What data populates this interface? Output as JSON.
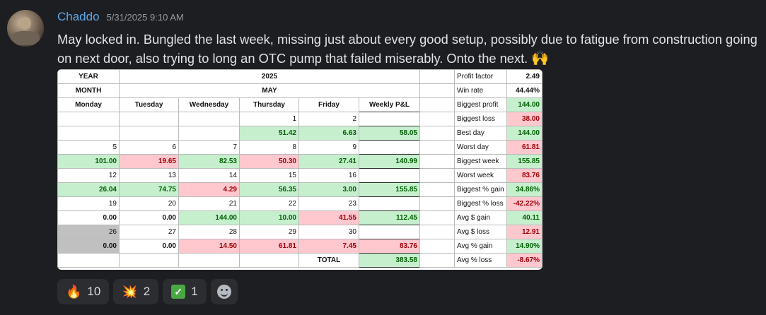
{
  "message": {
    "username": "Chaddo",
    "timestamp": "5/31/2025 9:10 AM",
    "text": "May locked in. Bungled the last week, missing just about every good setup, possibly due to fatigue from construction going on next door, also trying to long an OTC pump that failed miserably. Onto the next.",
    "emoji": "🙌"
  },
  "sheet": {
    "year_label": "YEAR",
    "year": "2025",
    "month_label": "MONTH",
    "month": "MAY",
    "days": [
      "Monday",
      "Tuesday",
      "Wednesday",
      "Thursday",
      "Friday",
      "Weekly P&L"
    ],
    "rows": [
      [
        "",
        "",
        "",
        "1",
        "2",
        ""
      ],
      [
        "",
        "",
        "",
        "51.42",
        "6.63",
        "58.05"
      ],
      [
        "5",
        "6",
        "7",
        "8",
        "9",
        ""
      ],
      [
        "101.00",
        "19.65",
        "82.53",
        "50.30",
        "27.41",
        "140.99"
      ],
      [
        "12",
        "13",
        "14",
        "15",
        "16",
        ""
      ],
      [
        "26.04",
        "74.75",
        "4.29",
        "56.35",
        "3.00",
        "155.85"
      ],
      [
        "19",
        "20",
        "21",
        "22",
        "23",
        ""
      ],
      [
        "0.00",
        "0.00",
        "144.00",
        "10.00",
        "41.55",
        "112.45"
      ],
      [
        "26",
        "27",
        "28",
        "29",
        "30",
        ""
      ],
      [
        "0.00",
        "0.00",
        "14.50",
        "61.81",
        "7.45",
        "83.76"
      ]
    ],
    "total_label": "TOTAL",
    "total_value": "383.58",
    "colors": {
      "profit_bg": "#c6efce",
      "profit_text": "#006100",
      "loss_bg": "#ffc7ce",
      "loss_text": "#9c0006",
      "holiday_bg": "#c0c0c0"
    }
  },
  "stats": [
    {
      "label": "Profit factor",
      "value": "2.49"
    },
    {
      "label": "Win rate",
      "value": "44.44%"
    },
    {
      "label": "Biggest profit",
      "value": "144.00"
    },
    {
      "label": "Biggest loss",
      "value": "38.00"
    },
    {
      "label": "Best day",
      "value": "144.00"
    },
    {
      "label": "Worst day",
      "value": "61.81"
    },
    {
      "label": "Biggest week",
      "value": "155.85"
    },
    {
      "label": "Worst week",
      "value": "83.76"
    },
    {
      "label": "Biggest % gain",
      "value": "34.86%"
    },
    {
      "label": "Biggest % loss",
      "value": "-42.22%"
    },
    {
      "label": "Avg $ gain",
      "value": "40.11"
    },
    {
      "label": "Avg $ loss",
      "value": "12.91"
    },
    {
      "label": "Avg % gain",
      "value": "14.90%"
    },
    {
      "label": "Avg % loss",
      "value": "-8.67%"
    }
  ],
  "reactions": [
    {
      "icon": "fire-icon",
      "glyph": "🔥",
      "count": "10"
    },
    {
      "icon": "collision-icon",
      "glyph": "💥",
      "count": "2"
    },
    {
      "icon": "check-mark-icon",
      "glyph": "✓",
      "count": "1"
    }
  ],
  "add_reaction": {
    "icon": "add-reaction-icon"
  }
}
